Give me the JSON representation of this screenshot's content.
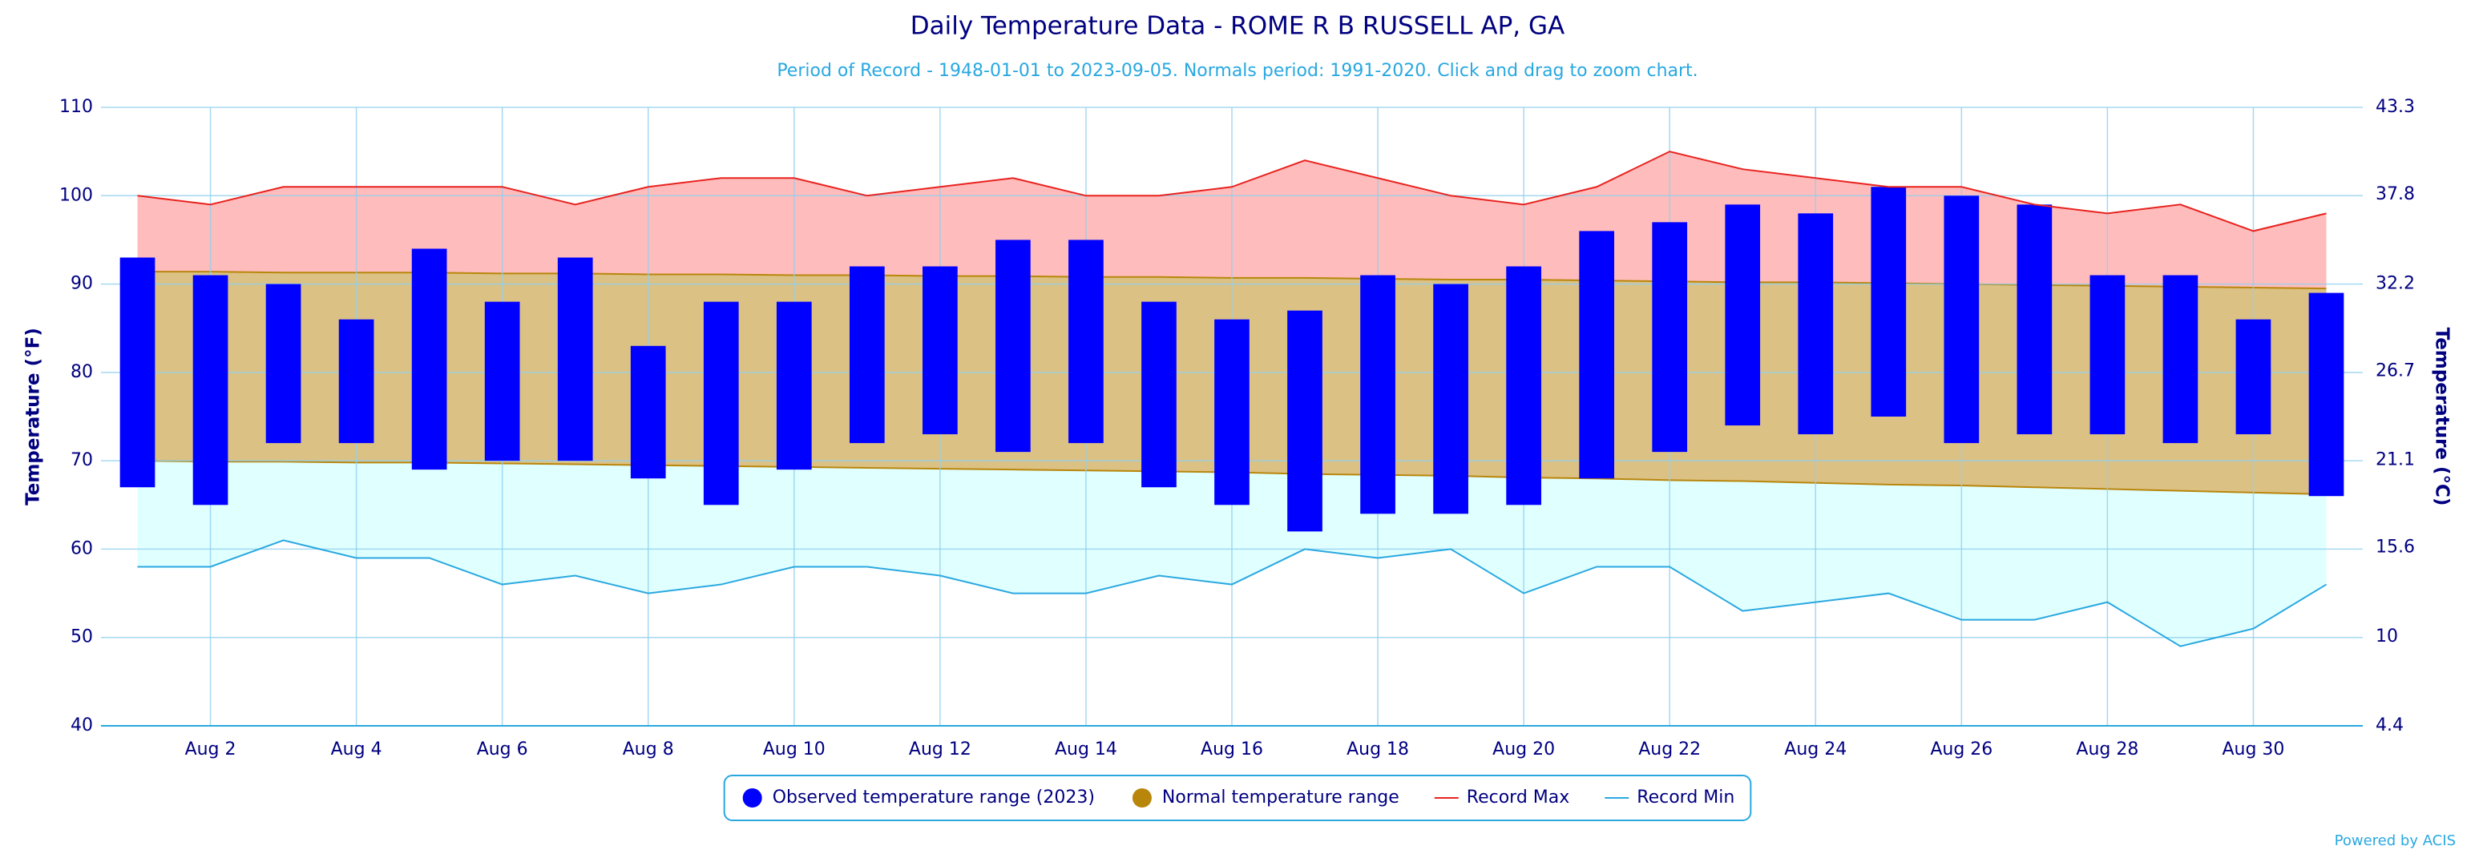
{
  "chart_data": {
    "type": "bar",
    "title": "Daily Temperature Data - ROME R B RUSSELL AP, GA",
    "subtitle": "Period of Record - 1948-01-01 to 2023-09-05. Normals period: 1991-2020. Click and drag to zoom chart.",
    "y_label": "Temperature (°F)",
    "y2_label": "Temperature (°C)",
    "categories": [
      null,
      "Aug 2",
      null,
      "Aug 4",
      null,
      "Aug 6",
      null,
      "Aug 8",
      null,
      "Aug 10",
      null,
      "Aug 12",
      null,
      "Aug 14",
      null,
      "Aug 16",
      null,
      "Aug 18",
      null,
      "Aug 20",
      null,
      "Aug 22",
      null,
      "Aug 24",
      null,
      "Aug 26",
      null,
      "Aug 28",
      null,
      "Aug 30",
      null
    ],
    "ylim": [
      40,
      110
    ],
    "yticks": [
      40,
      50,
      60,
      70,
      80,
      90,
      100,
      110
    ],
    "y2lim": [
      4.4,
      43.3
    ],
    "y2ticks": [
      4.4,
      10,
      15.6,
      21.1,
      26.7,
      32.2,
      37.8,
      43.3
    ],
    "grid": true,
    "legend_position": "bottom",
    "series": [
      {
        "name": "Observed temperature range (2023)",
        "type": "bar",
        "color": "#0000ff",
        "low": [
          67,
          65,
          72,
          72,
          69,
          70,
          70,
          68,
          65,
          69,
          72,
          73,
          71,
          72,
          67,
          65,
          62,
          64,
          64,
          65,
          68,
          71,
          74,
          73,
          75,
          72,
          73,
          73,
          72,
          73,
          66
        ],
        "high": [
          93,
          91,
          90,
          86,
          94,
          88,
          93,
          83,
          88,
          88,
          92,
          92,
          95,
          95,
          88,
          86,
          87,
          91,
          90,
          92,
          96,
          97,
          99,
          98,
          101,
          100,
          99,
          91,
          91,
          86,
          89
        ]
      },
      {
        "name": "Normal temperature range",
        "type": "area",
        "color": "#b8860b",
        "fill": "#dcc185",
        "low": [
          70.0,
          69.9,
          69.9,
          69.8,
          69.8,
          69.7,
          69.6,
          69.5,
          69.4,
          69.3,
          69.2,
          69.1,
          69.0,
          68.9,
          68.8,
          68.7,
          68.5,
          68.4,
          68.3,
          68.1,
          68.0,
          67.8,
          67.7,
          67.5,
          67.3,
          67.2,
          67.0,
          66.8,
          66.6,
          66.4,
          66.2
        ],
        "high": [
          91.4,
          91.4,
          91.3,
          91.3,
          91.3,
          91.2,
          91.2,
          91.1,
          91.1,
          91.0,
          91.0,
          90.9,
          90.9,
          90.8,
          90.8,
          90.7,
          90.7,
          90.6,
          90.5,
          90.5,
          90.4,
          90.3,
          90.2,
          90.2,
          90.1,
          90.0,
          89.9,
          89.8,
          89.7,
          89.6,
          89.5
        ]
      },
      {
        "name": "Record Max",
        "type": "line",
        "color": "#e8231f",
        "fill": "#ffbcbc",
        "values": [
          100,
          99,
          101,
          101,
          101,
          101,
          99,
          101,
          102,
          102,
          100,
          101,
          102,
          100,
          100,
          101,
          104,
          102,
          100,
          99,
          101,
          105,
          103,
          102,
          101,
          101,
          99,
          98,
          99,
          96,
          98
        ]
      },
      {
        "name": "Record Min",
        "type": "line",
        "color": "#29a8e0",
        "fill": "#e0ffff",
        "values": [
          58,
          58,
          61,
          59,
          59,
          56,
          57,
          55,
          56,
          58,
          58,
          57,
          55,
          55,
          57,
          56,
          60,
          59,
          60,
          55,
          58,
          58,
          53,
          54,
          55,
          52,
          52,
          54,
          49,
          51,
          56
        ]
      }
    ]
  },
  "credit": "Powered by ACIS"
}
